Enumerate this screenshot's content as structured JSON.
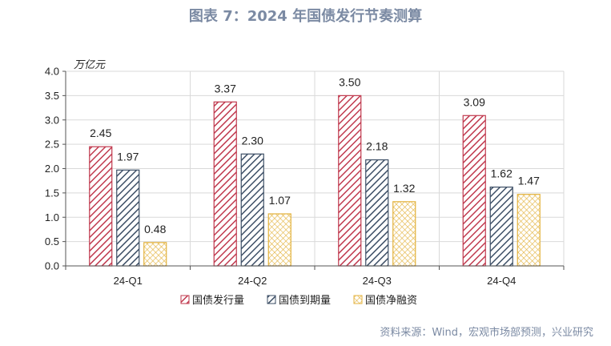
{
  "figure_title": "图表 7：2024 年国债发行节奏测算",
  "source_note": "资料来源：Wind，宏观市场部预测，兴业研究",
  "chart_data": {
    "type": "bar",
    "unit_label": "万亿元",
    "categories": [
      "24-Q1",
      "24-Q2",
      "24-Q3",
      "24-Q4"
    ],
    "series": [
      {
        "name": "国债发行量",
        "values": [
          2.45,
          3.37,
          3.5,
          3.09
        ],
        "color": "#c0394e",
        "pattern": "diagonal-hatch"
      },
      {
        "name": "国债到期量",
        "values": [
          1.97,
          2.3,
          2.18,
          1.62
        ],
        "color": "#3d4f66",
        "pattern": "diagonal-hatch"
      },
      {
        "name": "国债净融资",
        "values": [
          0.48,
          1.07,
          1.32,
          1.47
        ],
        "color": "#e3b23c",
        "pattern": "crosshatch"
      }
    ],
    "data_labels": [
      [
        "2.45",
        "3.37",
        "3.50",
        "3.09"
      ],
      [
        "1.97",
        "2.30",
        "2.18",
        "1.62"
      ],
      [
        "0.48",
        "1.07",
        "1.32",
        "1.47"
      ]
    ],
    "ylim": [
      0,
      4.0
    ],
    "yticks": [
      "0.0",
      "0.5",
      "1.0",
      "1.5",
      "2.0",
      "2.5",
      "3.0",
      "3.5",
      "4.0"
    ],
    "grid": true,
    "legend_position": "bottom"
  }
}
